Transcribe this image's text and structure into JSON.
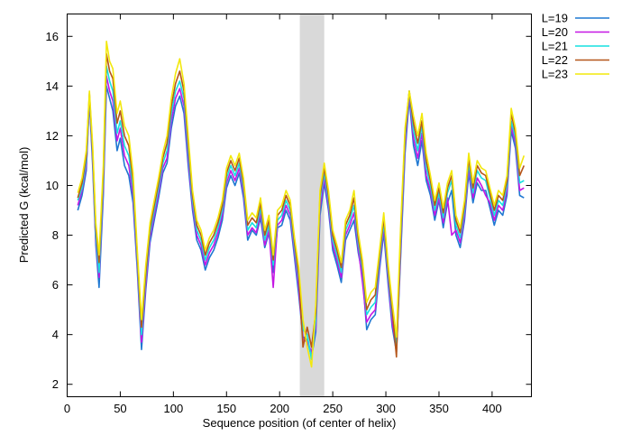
{
  "chart_data": {
    "type": "line",
    "title": "",
    "xlabel": "Sequence position (of center of helix)",
    "ylabel": "Predicted  G (kcal/mol)",
    "xlim": [
      0,
      437
    ],
    "ylim": [
      1.5,
      16.9
    ],
    "xticks": [
      0,
      50,
      100,
      150,
      200,
      250,
      300,
      350,
      400
    ],
    "yticks": [
      2,
      4,
      6,
      8,
      10,
      12,
      14,
      16
    ],
    "grid": false,
    "legend_position": "outside-top-right",
    "highlight_band": {
      "x_start": 219,
      "x_end": 242,
      "color": "#d9d9d9"
    },
    "x": [
      10,
      14,
      18,
      21,
      24,
      27,
      30,
      34,
      37,
      40,
      43,
      47,
      50,
      54,
      58,
      62,
      66,
      70,
      74,
      78,
      82,
      86,
      90,
      94,
      98,
      102,
      106,
      110,
      114,
      118,
      122,
      126,
      130,
      134,
      138,
      142,
      146,
      150,
      154,
      158,
      162,
      166,
      170,
      174,
      178,
      182,
      186,
      190,
      194,
      198,
      202,
      206,
      210,
      214,
      218,
      222,
      226,
      230,
      234,
      238,
      242,
      246,
      250,
      254,
      258,
      262,
      266,
      270,
      274,
      278,
      282,
      286,
      290,
      294,
      298,
      302,
      306,
      310,
      314,
      318,
      322,
      326,
      330,
      334,
      338,
      342,
      346,
      350,
      354,
      358,
      362,
      366,
      370,
      374,
      378,
      382,
      386,
      390,
      394,
      398,
      402,
      406,
      410,
      414,
      418,
      422,
      426,
      430
    ],
    "series": [
      {
        "name": "L=19",
        "color": "#1f78d2",
        "values": [
          9.0,
          9.6,
          10.6,
          13.4,
          10.8,
          7.6,
          5.9,
          9.6,
          14.0,
          13.5,
          13.0,
          11.4,
          11.9,
          10.8,
          10.4,
          9.3,
          6.6,
          3.4,
          5.8,
          7.7,
          8.6,
          9.5,
          10.5,
          10.9,
          12.3,
          13.2,
          13.6,
          12.9,
          10.8,
          9.0,
          7.8,
          7.4,
          6.6,
          7.1,
          7.4,
          7.9,
          8.6,
          9.9,
          10.4,
          10.0,
          10.5,
          9.5,
          7.8,
          8.2,
          8.0,
          8.7,
          7.5,
          8.1,
          6.5,
          8.3,
          8.4,
          9.0,
          8.6,
          7.1,
          5.6,
          3.9,
          3.8,
          3.1,
          4.1,
          8.8,
          10.1,
          9.0,
          7.4,
          6.8,
          6.1,
          7.8,
          8.2,
          8.6,
          7.3,
          6.4,
          4.2,
          4.6,
          4.8,
          6.6,
          8.1,
          6.1,
          4.3,
          3.3,
          7.2,
          11.3,
          13.5,
          11.6,
          10.8,
          11.8,
          10.2,
          9.6,
          8.6,
          9.4,
          8.3,
          9.3,
          9.8,
          8.0,
          7.5,
          8.6,
          10.5,
          9.3,
          10.1,
          9.8,
          9.8,
          9.1,
          8.4,
          9.0,
          8.8,
          9.6,
          12.2,
          11.5,
          9.6,
          9.5
        ]
      },
      {
        "name": "L=20",
        "color": "#c517e4",
        "values": [
          9.2,
          9.8,
          10.8,
          13.5,
          11.0,
          7.8,
          6.3,
          9.9,
          14.4,
          13.8,
          13.4,
          11.8,
          12.3,
          11.2,
          10.8,
          9.6,
          6.8,
          3.7,
          6.0,
          7.9,
          8.8,
          9.7,
          10.7,
          11.1,
          12.6,
          13.5,
          13.9,
          13.2,
          11.1,
          9.2,
          8.0,
          7.6,
          6.8,
          7.3,
          7.6,
          8.1,
          8.8,
          10.1,
          10.6,
          10.2,
          10.7,
          9.7,
          8.0,
          8.3,
          8.1,
          8.9,
          7.6,
          8.2,
          5.9,
          8.4,
          8.6,
          9.2,
          8.8,
          7.3,
          5.9,
          3.8,
          3.7,
          3.3,
          4.3,
          9.1,
          10.3,
          9.2,
          7.6,
          7.0,
          6.3,
          8.0,
          8.4,
          8.9,
          7.5,
          6.1,
          4.5,
          4.8,
          5.0,
          6.8,
          8.3,
          6.3,
          4.5,
          3.4,
          7.5,
          11.6,
          13.7,
          11.9,
          11.1,
          12.1,
          10.4,
          9.8,
          8.8,
          9.5,
          8.5,
          9.5,
          8.0,
          8.2,
          7.7,
          8.8,
          10.7,
          9.5,
          10.3,
          10.0,
          9.6,
          9.3,
          8.6,
          9.2,
          9.0,
          9.8,
          12.4,
          11.7,
          9.8,
          9.9
        ]
      },
      {
        "name": "L=21",
        "color": "#17e0e0",
        "values": [
          9.4,
          9.9,
          11.0,
          13.6,
          11.2,
          8.0,
          6.5,
          10.2,
          14.8,
          14.2,
          13.8,
          12.1,
          12.6,
          11.6,
          11.2,
          9.9,
          7.0,
          4.0,
          6.3,
          8.1,
          9.0,
          9.9,
          10.9,
          11.4,
          12.9,
          13.8,
          14.2,
          13.5,
          11.4,
          9.4,
          8.2,
          7.8,
          7.0,
          7.5,
          7.8,
          8.3,
          9.0,
          10.3,
          10.8,
          10.4,
          10.9,
          9.9,
          8.2,
          8.5,
          8.3,
          9.1,
          7.8,
          8.4,
          6.8,
          8.6,
          8.8,
          9.4,
          9.0,
          7.5,
          6.2,
          4.2,
          4.0,
          3.0,
          4.6,
          9.4,
          10.5,
          9.4,
          7.8,
          7.2,
          6.5,
          8.2,
          8.6,
          9.2,
          7.7,
          6.6,
          4.8,
          5.1,
          5.3,
          7.0,
          8.5,
          6.5,
          4.8,
          3.6,
          7.8,
          11.9,
          13.8,
          12.2,
          11.4,
          12.4,
          10.7,
          10.0,
          9.0,
          9.7,
          8.7,
          9.7,
          10.2,
          8.4,
          7.9,
          9.0,
          10.9,
          9.7,
          10.6,
          10.3,
          10.2,
          9.5,
          8.8,
          9.4,
          9.2,
          10.0,
          12.6,
          11.9,
          10.1,
          10.2
        ]
      },
      {
        "name": "L=22",
        "color": "#b5561a",
        "values": [
          9.5,
          10.1,
          11.2,
          13.7,
          11.4,
          8.3,
          6.9,
          10.5,
          15.3,
          14.6,
          14.3,
          12.5,
          13.0,
          12.0,
          11.6,
          10.2,
          7.2,
          4.3,
          6.5,
          8.3,
          9.2,
          10.1,
          11.1,
          11.7,
          13.2,
          14.1,
          14.6,
          13.8,
          11.7,
          9.6,
          8.4,
          8.0,
          7.2,
          7.7,
          8.0,
          8.5,
          9.2,
          10.5,
          11.0,
          10.6,
          11.1,
          10.1,
          8.4,
          8.7,
          8.5,
          9.3,
          8.0,
          8.6,
          7.0,
          8.8,
          9.0,
          9.6,
          9.2,
          7.7,
          6.4,
          3.5,
          4.3,
          3.5,
          4.9,
          9.6,
          10.7,
          9.6,
          8.0,
          7.4,
          6.7,
          8.4,
          8.8,
          9.5,
          7.9,
          6.8,
          5.0,
          5.4,
          5.6,
          7.2,
          8.7,
          6.7,
          5.0,
          3.1,
          8.1,
          12.1,
          13.8,
          12.5,
          11.7,
          12.6,
          11.0,
          10.2,
          9.2,
          9.9,
          8.9,
          9.9,
          10.4,
          8.6,
          8.1,
          9.2,
          11.1,
          9.9,
          10.8,
          10.5,
          10.4,
          9.7,
          9.0,
          9.6,
          9.4,
          10.2,
          12.9,
          12.1,
          10.4,
          10.8
        ]
      },
      {
        "name": "L=23",
        "color": "#f2e80c",
        "values": [
          9.7,
          10.3,
          11.4,
          13.8,
          11.6,
          8.5,
          7.2,
          10.8,
          15.8,
          15.0,
          14.7,
          12.9,
          13.4,
          12.4,
          12.0,
          10.5,
          7.4,
          4.6,
          6.8,
          8.5,
          9.4,
          10.3,
          11.3,
          12.0,
          13.5,
          14.5,
          15.1,
          14.1,
          12.0,
          9.8,
          8.6,
          8.2,
          7.4,
          7.9,
          8.2,
          8.7,
          9.4,
          10.7,
          11.2,
          10.8,
          11.3,
          10.3,
          8.6,
          8.9,
          8.7,
          9.5,
          8.2,
          8.8,
          7.2,
          9.0,
          9.2,
          9.8,
          9.4,
          7.9,
          6.7,
          4.6,
          3.5,
          2.7,
          5.2,
          9.8,
          10.9,
          9.8,
          8.2,
          7.6,
          6.9,
          8.6,
          9.0,
          9.8,
          8.1,
          7.0,
          5.3,
          5.7,
          5.9,
          7.4,
          8.9,
          6.9,
          5.3,
          3.9,
          8.4,
          12.3,
          13.8,
          12.8,
          12.0,
          12.9,
          11.3,
          10.4,
          9.4,
          10.1,
          9.1,
          10.1,
          10.6,
          8.8,
          8.3,
          9.4,
          11.3,
          10.1,
          11.0,
          10.7,
          10.6,
          9.9,
          9.2,
          9.8,
          9.6,
          10.4,
          13.1,
          12.3,
          10.7,
          11.2
        ]
      }
    ]
  }
}
